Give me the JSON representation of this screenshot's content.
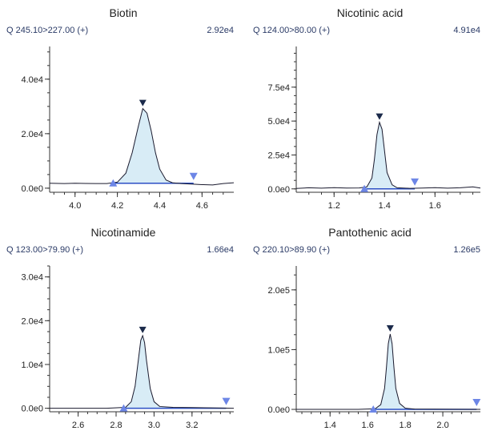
{
  "chart_data": [
    {
      "type": "line",
      "title": "Biotin",
      "transition": "Q 245.10>227.00 (+)",
      "max_intensity": "2.92e4",
      "peak_apex_rt": 4.32,
      "integration_start_rt": 4.18,
      "integration_end_rt": 4.56,
      "baseline_y": 1800,
      "xlim": [
        3.88,
        4.75
      ],
      "ylim": [
        -1500,
        52000
      ],
      "x_ticks": [
        {
          "v": 4.0,
          "label": "4.0"
        },
        {
          "v": 4.2,
          "label": "4.2"
        },
        {
          "v": 4.4,
          "label": "4.4"
        },
        {
          "v": 4.6,
          "label": "4.6"
        }
      ],
      "y_ticks": [
        {
          "v": 0,
          "label": "0.0e0"
        },
        {
          "v": 20000,
          "label": "2.0e4"
        },
        {
          "v": 40000,
          "label": "4.0e4"
        }
      ],
      "series": [
        {
          "x": [
            3.88,
            3.95,
            4.0,
            4.05,
            4.1,
            4.15,
            4.2,
            4.24,
            4.27,
            4.3,
            4.32,
            4.34,
            4.36,
            4.38,
            4.4,
            4.43,
            4.46,
            4.5,
            4.55,
            4.6,
            4.65,
            4.7,
            4.75
          ],
          "y": [
            1800,
            1700,
            1800,
            1750,
            1700,
            1700,
            2200,
            5500,
            13000,
            23000,
            29200,
            27500,
            21000,
            13000,
            7000,
            3000,
            2000,
            1700,
            1500,
            1300,
            1200,
            1700,
            2000
          ]
        }
      ]
    },
    {
      "type": "line",
      "title": "Nicotinic acid",
      "transition": "Q 124.00>80.00 (+)",
      "max_intensity": "4.91e4",
      "peak_apex_rt": 1.38,
      "integration_start_rt": 1.32,
      "integration_end_rt": 1.52,
      "baseline_y": 0,
      "xlim": [
        1.05,
        1.78
      ],
      "ylim": [
        -2500,
        105000
      ],
      "x_ticks": [
        {
          "v": 1.2,
          "label": "1.2"
        },
        {
          "v": 1.4,
          "label": "1.4"
        },
        {
          "v": 1.6,
          "label": "1.6"
        }
      ],
      "y_ticks": [
        {
          "v": 0,
          "label": "0.0e0"
        },
        {
          "v": 25000,
          "label": "2.5e4"
        },
        {
          "v": 50000,
          "label": "5.0e4"
        },
        {
          "v": 75000,
          "label": "7.5e4"
        }
      ],
      "series": [
        {
          "x": [
            1.05,
            1.1,
            1.15,
            1.2,
            1.25,
            1.3,
            1.33,
            1.35,
            1.36,
            1.37,
            1.38,
            1.39,
            1.4,
            1.41,
            1.43,
            1.45,
            1.5,
            1.55,
            1.6,
            1.65,
            1.7,
            1.75,
            1.78
          ],
          "y": [
            300,
            800,
            500,
            900,
            600,
            700,
            1500,
            8000,
            22000,
            40000,
            49100,
            44000,
            28000,
            12000,
            3000,
            800,
            400,
            600,
            900,
            500,
            800,
            1500,
            600
          ]
        }
      ]
    },
    {
      "type": "line",
      "title": "Nicotinamide",
      "transition": "Q 123.00>79.90 (+)",
      "max_intensity": "1.66e4",
      "peak_apex_rt": 2.94,
      "integration_start_rt": 2.84,
      "integration_end_rt": 3.38,
      "baseline_y": 0,
      "xlim": [
        2.45,
        3.42
      ],
      "ylim": [
        -800,
        32500
      ],
      "x_ticks": [
        {
          "v": 2.6,
          "label": "2.6"
        },
        {
          "v": 2.8,
          "label": "2.8"
        },
        {
          "v": 3.0,
          "label": "3.0"
        },
        {
          "v": 3.2,
          "label": "3.2"
        }
      ],
      "y_ticks": [
        {
          "v": 0,
          "label": "0.0e0"
        },
        {
          "v": 10000,
          "label": "1.0e4"
        },
        {
          "v": 20000,
          "label": "2.0e4"
        },
        {
          "v": 30000,
          "label": "3.0e4"
        }
      ],
      "series": [
        {
          "x": [
            2.45,
            2.6,
            2.75,
            2.85,
            2.88,
            2.9,
            2.92,
            2.93,
            2.94,
            2.95,
            2.96,
            2.98,
            3.0,
            3.03,
            3.1,
            3.2,
            3.3,
            3.42
          ],
          "y": [
            0,
            0,
            0,
            200,
            1500,
            5000,
            12000,
            15500,
            16600,
            15000,
            11000,
            4500,
            1500,
            400,
            200,
            150,
            100,
            0
          ]
        }
      ]
    },
    {
      "type": "line",
      "title": "Pantothenic acid",
      "transition": "Q 220.10>89.90 (+)",
      "max_intensity": "1.26e5",
      "peak_apex_rt": 1.72,
      "integration_start_rt": 1.63,
      "integration_end_rt": 2.18,
      "baseline_y": 0,
      "xlim": [
        1.22,
        2.2
      ],
      "ylim": [
        -4000,
        240000
      ],
      "x_ticks": [
        {
          "v": 1.4,
          "label": "1.4"
        },
        {
          "v": 1.6,
          "label": "1.6"
        },
        {
          "v": 1.8,
          "label": "1.8"
        },
        {
          "v": 2.0,
          "label": "2.0"
        }
      ],
      "y_ticks": [
        {
          "v": 0,
          "label": "0.0e0"
        },
        {
          "v": 100000,
          "label": "1.0e5"
        },
        {
          "v": 200000,
          "label": "2.0e5"
        }
      ],
      "series": [
        {
          "x": [
            1.22,
            1.4,
            1.55,
            1.64,
            1.67,
            1.69,
            1.7,
            1.71,
            1.72,
            1.73,
            1.74,
            1.75,
            1.77,
            1.8,
            1.85,
            1.95,
            2.05,
            2.2
          ],
          "y": [
            0,
            0,
            0,
            1000,
            8000,
            35000,
            70000,
            110000,
            126000,
            110000,
            70000,
            35000,
            10000,
            2000,
            500,
            300,
            200,
            0
          ]
        }
      ]
    }
  ],
  "colors": {
    "trace": "#1a1a2e",
    "fill": "#d8ecf6",
    "integration_line": "#2b4fc4",
    "apex_marker": "#1b2a4a",
    "boundary_marker": "#6d86e6",
    "label_text": "#2a3a66"
  }
}
